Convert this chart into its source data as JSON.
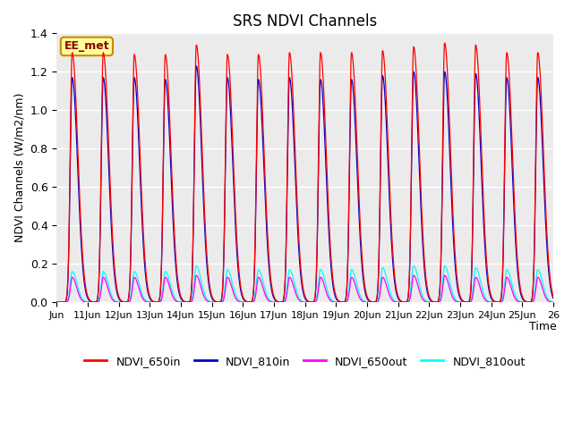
{
  "title": "SRS NDVI Channels",
  "ylabel": "NDVI Channels (W/m2/nm)",
  "xlabel": "Time",
  "ylim": [
    0.0,
    1.4
  ],
  "yticks": [
    0.0,
    0.2,
    0.4,
    0.6,
    0.8,
    1.0,
    1.2,
    1.4
  ],
  "xtick_positions": [
    0,
    1,
    2,
    3,
    4,
    5,
    6,
    7,
    8,
    9,
    10,
    11,
    12,
    13,
    14,
    15,
    16
  ],
  "xtick_labels": [
    "Jun",
    "11Jun",
    "12Jun",
    "13Jun",
    "14Jun",
    "15Jun",
    "16Jun",
    "17Jun",
    "18Jun",
    "19Jun",
    "20Jun",
    "21Jun",
    "22Jun",
    "23Jun",
    "24Jun",
    "25Jun",
    "26"
  ],
  "colors": {
    "NDVI_650in": "#ff0000",
    "NDVI_810in": "#0000cc",
    "NDVI_650out": "#ff00ff",
    "NDVI_810out": "#00ffff"
  },
  "annotation_text": "EE_met",
  "annotation_bg": "#ffff99",
  "annotation_border": "#cc8800",
  "n_days": 16,
  "peak_650in": [
    1.3,
    1.3,
    1.29,
    1.29,
    1.34,
    1.29,
    1.29,
    1.3,
    1.3,
    1.3,
    1.31,
    1.33,
    1.35,
    1.34,
    1.3,
    1.3
  ],
  "peak_810in": [
    1.17,
    1.17,
    1.17,
    1.16,
    1.23,
    1.17,
    1.16,
    1.17,
    1.16,
    1.16,
    1.18,
    1.2,
    1.2,
    1.19,
    1.17,
    1.17
  ],
  "peak_810out": [
    0.16,
    0.16,
    0.16,
    0.16,
    0.19,
    0.17,
    0.17,
    0.17,
    0.17,
    0.17,
    0.18,
    0.19,
    0.19,
    0.18,
    0.17,
    0.17
  ],
  "peak_650out": [
    0.13,
    0.13,
    0.13,
    0.13,
    0.14,
    0.13,
    0.13,
    0.13,
    0.13,
    0.13,
    0.13,
    0.14,
    0.14,
    0.13,
    0.13,
    0.13
  ],
  "plot_bg": "#ebebeb"
}
